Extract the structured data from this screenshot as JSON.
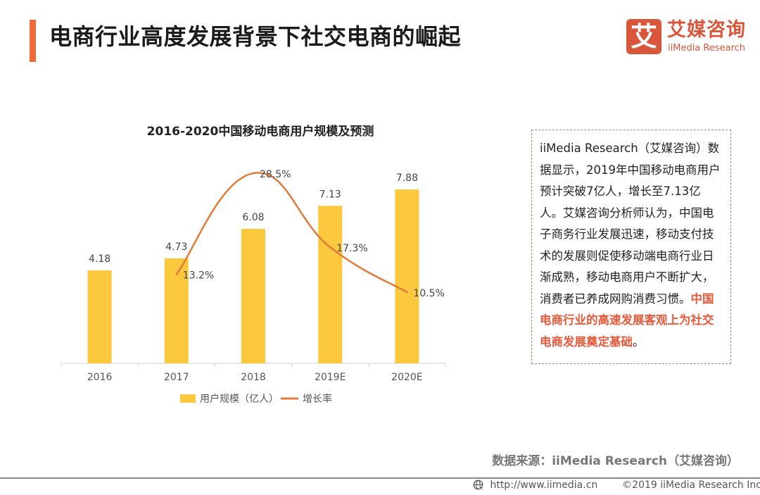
{
  "header": {
    "title": "电商行业高度发展背景下社交电商的崛起",
    "accent_color": "#ee6a3a"
  },
  "logo": {
    "mark": "艾",
    "name_cn": "艾媒咨询",
    "name_en": "iiMedia Research",
    "color": "#d9563a"
  },
  "chart_data": {
    "type": "bar+line",
    "title": "2016-2020中国移动电商用户规模及预测",
    "categories": [
      "2016",
      "2017",
      "2018",
      "2019E",
      "2020E"
    ],
    "series": [
      {
        "name": "用户规模（亿人）",
        "type": "bar",
        "color": "#fcc93e",
        "values": [
          4.18,
          4.73,
          6.08,
          7.13,
          7.88
        ],
        "labels": [
          "4.18",
          "4.73",
          "6.08",
          "7.13",
          "7.88"
        ]
      },
      {
        "name": "增长率",
        "type": "line",
        "color": "#e07b39",
        "smooth": true,
        "values": [
          null,
          13.2,
          28.5,
          17.3,
          10.5
        ],
        "labels": [
          "",
          "13.2%",
          "28.5%",
          "17.3%",
          "10.5%"
        ],
        "unit": "%"
      }
    ],
    "xlabel": "",
    "ylabel": "",
    "ylim_bar": [
      0,
      11
    ],
    "ylim_line": [
      0,
      32
    ],
    "grid": false,
    "legend": "bottom-center"
  },
  "info_box": {
    "text_normal": "iiMedia Research（艾媒咨询）数据显示，2019年中国移动电商用户预计突破7亿人，增长至7.13亿人。艾媒咨询分析师认为，中国电子商务行业发展迅速，移动支付技术的发展则促使移动端电商行业日渐成熟，移动电商用户不断扩大，消费者已养成网购消费习惯。",
    "text_highlight": "中国电商行业的高速发展客观上为社交电商发展奠定基础",
    "text_end": "。",
    "highlight_color": "#e8593a"
  },
  "source": "数据来源：iiMedia Research（艾媒咨询）",
  "footer": {
    "icon": "globe-icon",
    "url": "http://www.iimedia.cn",
    "copyright": "©2019  iiMedia Research  Inc"
  }
}
